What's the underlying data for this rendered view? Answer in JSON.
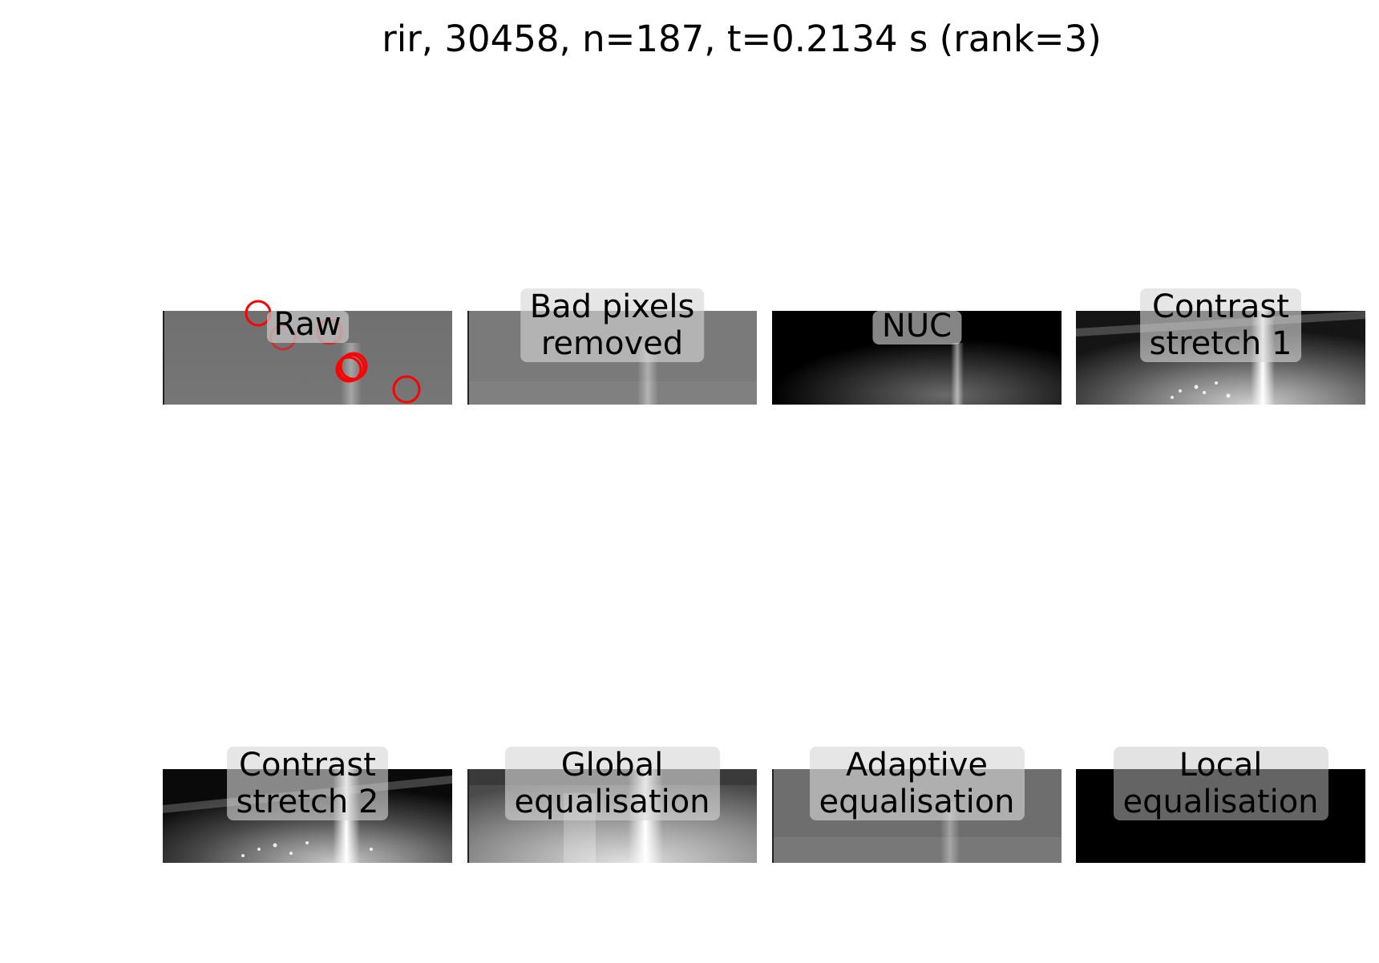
{
  "title": "rir, 30458, n=187, t=0.2134 s (rank=3)",
  "panels": [
    {
      "id": "raw",
      "lines": [
        "Raw"
      ],
      "style": "raw"
    },
    {
      "id": "bad-pixels-removed",
      "lines": [
        "Bad pixels",
        "removed"
      ],
      "style": "grey"
    },
    {
      "id": "nuc",
      "lines": [
        "NUC"
      ],
      "style": "dark"
    },
    {
      "id": "contrast-stretch-1",
      "lines": [
        "Contrast",
        "stretch 1"
      ],
      "style": "stretch"
    },
    {
      "id": "contrast-stretch-2",
      "lines": [
        "Contrast",
        "stretch 2"
      ],
      "style": "stretch"
    },
    {
      "id": "global-equalisation",
      "lines": [
        "Global",
        "equalisation"
      ],
      "style": "global"
    },
    {
      "id": "adaptive-equalisation",
      "lines": [
        "Adaptive",
        "equalisation"
      ],
      "style": "grey"
    },
    {
      "id": "local-equalisation",
      "lines": [
        "Local",
        "equalisation"
      ],
      "style": "black"
    }
  ],
  "colors": {
    "marker": "#ff0000"
  }
}
